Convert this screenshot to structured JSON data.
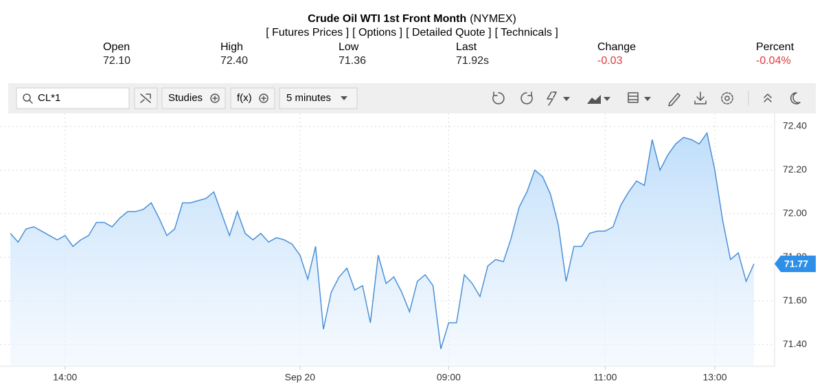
{
  "header": {
    "title": "Crude Oil WTI 1st Front Month",
    "exchange": "(NYMEX)",
    "links": [
      "[ Futures Prices ]",
      "[ Options ]",
      "[ Detailed Quote ]",
      "[ Technicals ]"
    ]
  },
  "quote": [
    {
      "label": "Open",
      "value": "72.10"
    },
    {
      "label": "High",
      "value": "72.40"
    },
    {
      "label": "Low",
      "value": "71.36"
    },
    {
      "label": "Last",
      "value": "71.92s"
    },
    {
      "label": "Change",
      "value": "-0.03"
    },
    {
      "label": "Percent",
      "value": "-0.04%"
    }
  ],
  "toolbar": {
    "symbol": "CL*1",
    "studies": "Studies",
    "function": "f(x)",
    "interval": "5 minutes"
  },
  "chart_data": {
    "type": "area",
    "color": "#4a8fd6",
    "grid": true,
    "categories": [
      null,
      null,
      null,
      null,
      null,
      null,
      null,
      "14:00",
      null,
      null,
      null,
      null,
      null,
      null,
      null,
      null,
      null,
      null,
      null,
      null,
      null,
      null,
      null,
      null,
      null,
      null,
      null,
      null,
      null,
      null,
      null,
      null,
      null,
      null,
      null,
      null,
      null,
      "Sep 20",
      null,
      null,
      null,
      null,
      null,
      null,
      null,
      null,
      null,
      null,
      null,
      null,
      null,
      null,
      null,
      null,
      null,
      null,
      "09:00",
      null,
      null,
      null,
      null,
      null,
      null,
      null,
      null,
      null,
      null,
      null,
      null,
      null,
      null,
      null,
      null,
      null,
      null,
      null,
      "11:00",
      null,
      null,
      null,
      null,
      null,
      null,
      null,
      null,
      null,
      null,
      null,
      null,
      null,
      "13:00",
      null,
      null,
      null,
      null,
      null
    ],
    "values": [
      71.91,
      71.87,
      71.93,
      71.94,
      71.92,
      71.9,
      71.88,
      71.9,
      71.85,
      71.88,
      71.9,
      71.96,
      71.96,
      71.94,
      71.98,
      72.01,
      72.01,
      72.02,
      72.05,
      71.98,
      71.9,
      71.93,
      72.05,
      72.05,
      72.06,
      72.07,
      72.1,
      72.0,
      71.9,
      72.01,
      71.91,
      71.88,
      71.91,
      71.87,
      71.89,
      71.88,
      71.86,
      71.81,
      71.7,
      71.85,
      71.47,
      71.64,
      71.71,
      71.75,
      71.65,
      71.67,
      71.5,
      71.81,
      71.68,
      71.71,
      71.64,
      71.55,
      71.69,
      71.72,
      71.67,
      71.38,
      71.5,
      71.5,
      71.72,
      71.68,
      71.62,
      71.76,
      71.79,
      71.78,
      71.89,
      72.03,
      72.1,
      72.2,
      72.17,
      72.09,
      71.95,
      71.69,
      71.85,
      71.85,
      71.91,
      71.92,
      71.92,
      71.94,
      72.04,
      72.1,
      72.15,
      72.13,
      72.34,
      72.2,
      72.27,
      72.32,
      72.35,
      72.34,
      72.32,
      72.37,
      72.2,
      71.97,
      71.79,
      71.82,
      71.69,
      71.77
    ],
    "ylim": [
      71.3,
      72.46
    ],
    "yticks": [
      {
        "value": 71.4,
        "label": "71.40"
      },
      {
        "value": 71.6,
        "label": "71.60"
      },
      {
        "value": 71.8,
        "label": "71.80"
      },
      {
        "value": 72.0,
        "label": "72.00"
      },
      {
        "value": 72.2,
        "label": "72.20"
      },
      {
        "value": 72.4,
        "label": "72.40"
      }
    ]
  }
}
